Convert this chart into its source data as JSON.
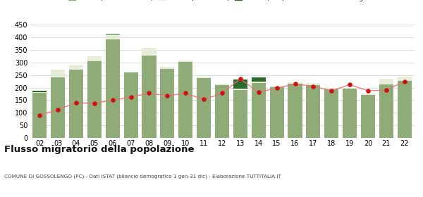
{
  "years": [
    "02",
    "03",
    "04",
    "05",
    "06",
    "07",
    "08",
    "09",
    "10",
    "11",
    "12",
    "13",
    "14",
    "15",
    "16",
    "17",
    "18",
    "19",
    "20",
    "21",
    "22"
  ],
  "iscritti_altri_comuni": [
    178,
    240,
    272,
    305,
    393,
    260,
    328,
    274,
    302,
    238,
    210,
    190,
    218,
    203,
    217,
    210,
    192,
    195,
    172,
    213,
    228
  ],
  "iscritti_estero": [
    5,
    33,
    18,
    20,
    18,
    3,
    30,
    8,
    5,
    5,
    5,
    5,
    5,
    3,
    5,
    8,
    5,
    5,
    5,
    22,
    15
  ],
  "iscritti_altri_bar": [
    5,
    0,
    0,
    0,
    5,
    0,
    0,
    0,
    0,
    0,
    0,
    38,
    18,
    0,
    0,
    0,
    0,
    0,
    0,
    0,
    0
  ],
  "cancellati": [
    90,
    113,
    140,
    138,
    150,
    163,
    178,
    168,
    178,
    153,
    178,
    235,
    182,
    198,
    215,
    205,
    188,
    212,
    188,
    190,
    225
  ],
  "color_altri_comuni": "#8fac78",
  "color_estero": "#e8edda",
  "color_altri": "#2d6a2d",
  "color_cancellati": "#cc1111",
  "color_line": "#e87070",
  "bg_color": "#ffffff",
  "grid_color": "#d8d8d8",
  "ylim": [
    0,
    455
  ],
  "yticks": [
    0,
    50,
    100,
    150,
    200,
    250,
    300,
    350,
    400,
    450
  ],
  "title": "Flusso migratorio della popolazione",
  "subtitle": "COMUNE DI GOSSOLENGO (PC) - Dati ISTAT (bilancio demografico 1 gen-31 dic) - Elaborazione TUTTITALIA.IT"
}
